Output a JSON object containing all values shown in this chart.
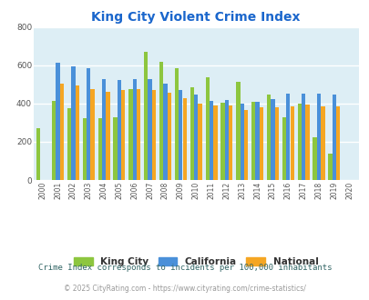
{
  "title": "King City Violent Crime Index",
  "years": [
    2000,
    2001,
    2002,
    2003,
    2004,
    2005,
    2006,
    2007,
    2008,
    2009,
    2010,
    2011,
    2012,
    2013,
    2014,
    2015,
    2016,
    2017,
    2018,
    2019,
    2020
  ],
  "king_city": [
    270,
    415,
    375,
    325,
    325,
    330,
    475,
    670,
    620,
    585,
    485,
    535,
    405,
    515,
    410,
    445,
    330,
    400,
    225,
    140,
    0
  ],
  "california": [
    0,
    615,
    595,
    585,
    530,
    525,
    530,
    527,
    505,
    470,
    445,
    412,
    418,
    400,
    408,
    425,
    450,
    450,
    450,
    445,
    0
  ],
  "national": [
    0,
    505,
    495,
    475,
    460,
    470,
    475,
    470,
    455,
    430,
    400,
    390,
    388,
    368,
    380,
    380,
    387,
    395,
    383,
    383,
    0
  ],
  "king_city_color": "#8dc63f",
  "california_color": "#4a90d9",
  "national_color": "#f5a623",
  "bg_color": "#ddeef5",
  "ylim": [
    0,
    800
  ],
  "yticks": [
    0,
    200,
    400,
    600,
    800
  ],
  "title_color": "#1a66cc",
  "legend_labels": [
    "King City",
    "California",
    "National"
  ],
  "footnote1": "Crime Index corresponds to incidents per 100,000 inhabitants",
  "footnote2": "© 2025 CityRating.com - https://www.cityrating.com/crime-statistics/",
  "footnote1_color": "#336666",
  "footnote2_color": "#999999"
}
